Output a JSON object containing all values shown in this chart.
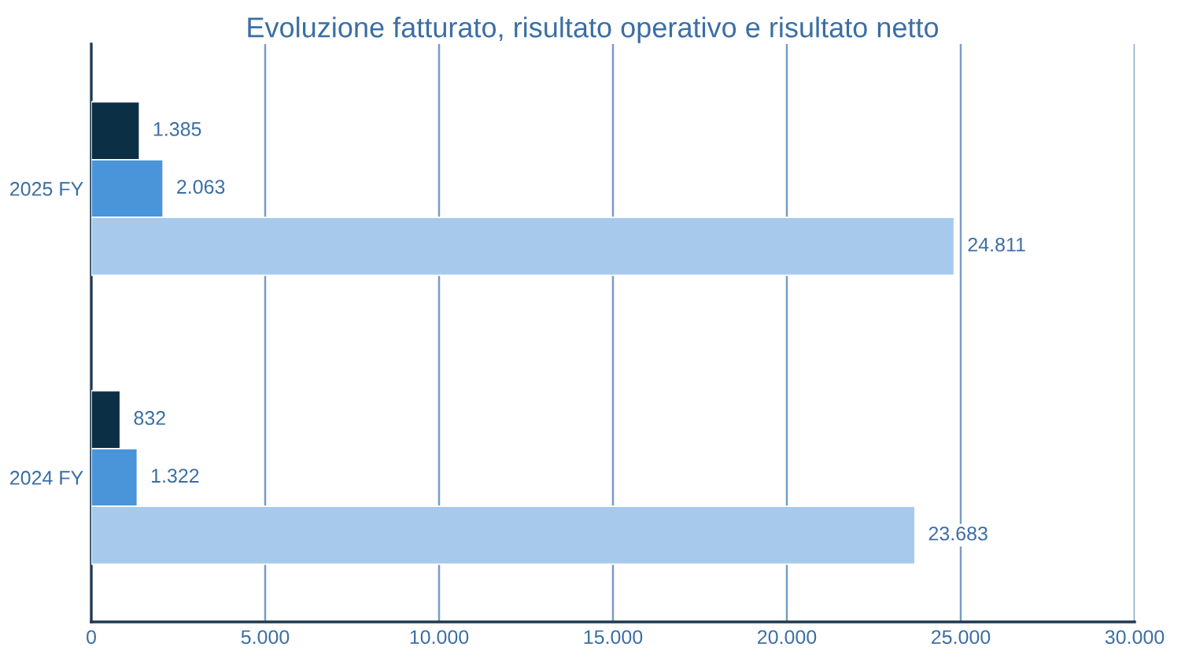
{
  "chart_data": {
    "type": "bar",
    "orientation": "horizontal",
    "title": "Evoluzione fatturato, risultato operativo e risultato netto",
    "categories": [
      "2025 FY",
      "2024 FY"
    ],
    "series": [
      {
        "color": "#0b2f44",
        "values": [
          1385,
          832
        ],
        "value_labels": [
          "1.385",
          "832"
        ]
      },
      {
        "color": "#4a94d9",
        "values": [
          2063,
          1322
        ],
        "value_labels": [
          "2.063",
          "1.322"
        ]
      },
      {
        "color": "#a6c9ec",
        "values": [
          24811,
          23683
        ],
        "value_labels": [
          "24.811",
          "23.683"
        ]
      }
    ],
    "xlim": [
      0,
      30000
    ],
    "xticks": [
      0,
      {
        "value": 5000,
        "label": "5.000"
      },
      {
        "value": 10000,
        "label": "10.000"
      },
      {
        "value": 15000,
        "label": "15.000"
      },
      {
        "value": 20000,
        "label": "20.000"
      },
      {
        "value": 25000,
        "label": "25.000"
      },
      {
        "value": 30000,
        "label": "30.000"
      }
    ],
    "grid": "x",
    "legend": false
  }
}
